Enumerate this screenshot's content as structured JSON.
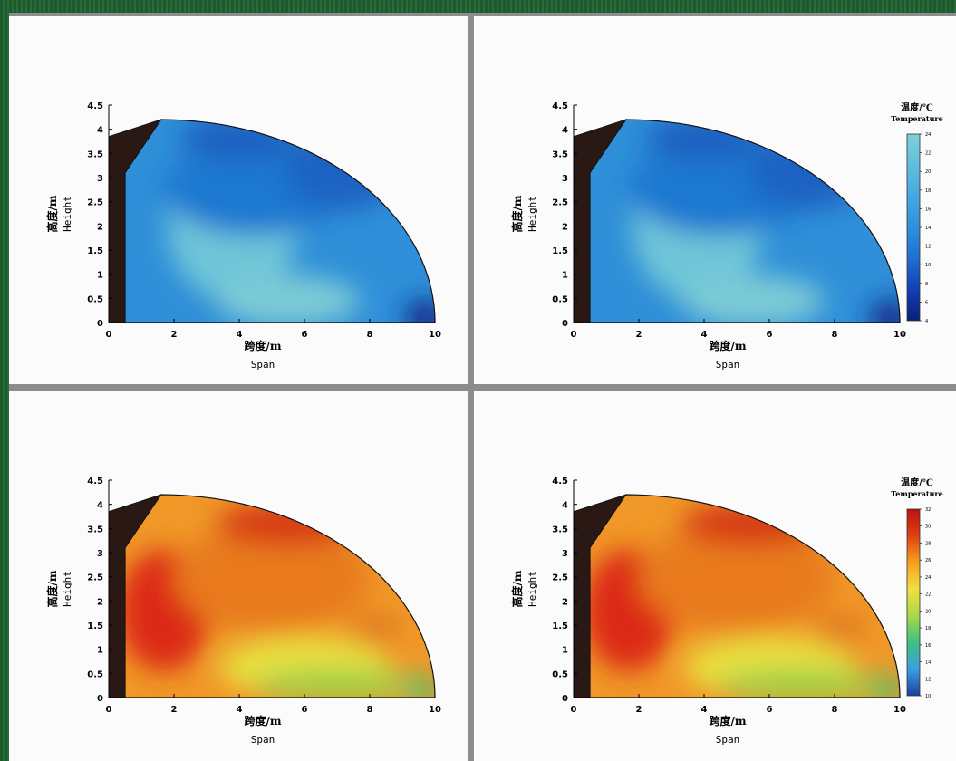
{
  "chart_data": [
    {
      "type": "heatmap",
      "xlabel_cn": "跨度/m",
      "xlabel_en": "Span",
      "ylabel_cn": "高度/m",
      "ylabel_en": "Height",
      "xlim": [
        0,
        10
      ],
      "ylim": [
        0,
        4.5
      ],
      "xticks": [
        "0",
        "2",
        "4",
        "6",
        "8",
        "10"
      ],
      "yticks": [
        "0",
        "0.5",
        "1",
        "1.5",
        "2",
        "2.5",
        "3",
        "3.5",
        "4",
        "4.5"
      ],
      "colorbar": false,
      "palette": "cool"
    },
    {
      "type": "heatmap",
      "xlabel_cn": "跨度/m",
      "xlabel_en": "Span",
      "ylabel_cn": "高度/m",
      "ylabel_en": "Height",
      "xlim": [
        0,
        10
      ],
      "ylim": [
        0,
        4.5
      ],
      "xticks": [
        "0",
        "2",
        "4",
        "6",
        "8",
        "10"
      ],
      "yticks": [
        "0",
        "0.5",
        "1",
        "1.5",
        "2",
        "2.5",
        "3",
        "3.5",
        "4",
        "4.5"
      ],
      "colorbar": true,
      "colorbar_title_cn": "温度/℃",
      "colorbar_title_en": "Temperature",
      "colorbar_ticks": [
        "4",
        "6",
        "8",
        "10",
        "12",
        "14",
        "16",
        "18",
        "20",
        "22",
        "24"
      ],
      "palette": "cool"
    },
    {
      "type": "heatmap",
      "xlabel_cn": "跨度/m",
      "xlabel_en": "Span",
      "ylabel_cn": "高度/m",
      "ylabel_en": "Height",
      "xlim": [
        0,
        10
      ],
      "ylim": [
        0,
        4.5
      ],
      "xticks": [
        "0",
        "2",
        "4",
        "6",
        "8",
        "10"
      ],
      "yticks": [
        "0",
        "0.5",
        "1",
        "1.5",
        "2",
        "2.5",
        "3",
        "3.5",
        "4",
        "4.5"
      ],
      "colorbar": false,
      "palette": "warm"
    },
    {
      "type": "heatmap",
      "xlabel_cn": "跨度/m",
      "xlabel_en": "Span",
      "ylabel_cn": "高度/m",
      "ylabel_en": "Height",
      "xlim": [
        0,
        10
      ],
      "ylim": [
        0,
        4.5
      ],
      "xticks": [
        "0",
        "2",
        "4",
        "6",
        "8",
        "10"
      ],
      "yticks": [
        "0",
        "0.5",
        "1",
        "1.5",
        "2",
        "2.5",
        "3",
        "3.5",
        "4",
        "4.5"
      ],
      "colorbar": true,
      "colorbar_title_cn": "温度/℃",
      "colorbar_title_en": "Temperature",
      "colorbar_ticks": [
        "10",
        "12",
        "14",
        "16",
        "18",
        "20",
        "22",
        "24",
        "26",
        "28",
        "30",
        "32"
      ],
      "palette": "warm"
    }
  ]
}
